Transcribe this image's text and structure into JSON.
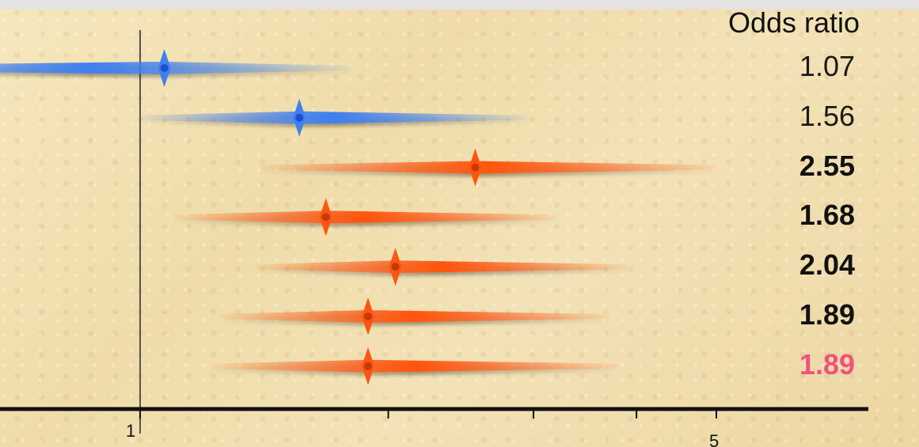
{
  "colors": {
    "protective": "#3f7ff0",
    "risk": "#ff5511",
    "pooled_text": "#f0527a"
  },
  "chart_data": {
    "type": "forest",
    "title": "",
    "column_header": "Odds ratio",
    "x_scale": "log",
    "x_ticks": [
      1,
      2,
      3,
      4,
      5
    ],
    "x_tick_labels": [
      "1",
      "",
      "",
      "",
      "5"
    ],
    "xlim": [
      0.4,
      7.2
    ],
    "reference_line": 1,
    "rows": [
      {
        "or": 1.07,
        "label": "1.07",
        "lower": 0.42,
        "upper": 1.8,
        "color": "blue",
        "bold": false,
        "pooled": false
      },
      {
        "or": 1.56,
        "label": "1.56",
        "lower": 1.0,
        "upper": 2.95,
        "color": "blue",
        "bold": false,
        "pooled": false
      },
      {
        "or": 2.55,
        "label": "2.55",
        "lower": 1.4,
        "upper": 5.0,
        "color": "red",
        "bold": true,
        "pooled": false
      },
      {
        "or": 1.68,
        "label": "1.68",
        "lower": 1.1,
        "upper": 3.2,
        "color": "red",
        "bold": true,
        "pooled": false
      },
      {
        "or": 2.04,
        "label": "2.04",
        "lower": 1.38,
        "upper": 3.9,
        "color": "red",
        "bold": true,
        "pooled": false
      },
      {
        "or": 1.89,
        "label": "1.89",
        "lower": 1.25,
        "upper": 3.7,
        "color": "red",
        "bold": true,
        "pooled": false
      },
      {
        "or": 1.89,
        "label": "1.89",
        "lower": 1.22,
        "upper": 3.8,
        "color": "red",
        "bold": true,
        "pooled": true
      }
    ]
  }
}
